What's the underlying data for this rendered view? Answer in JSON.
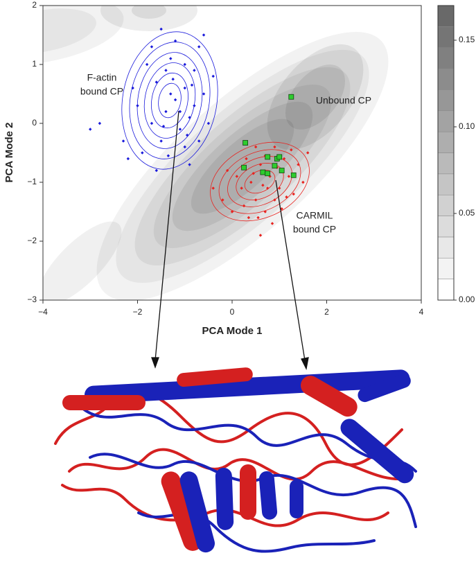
{
  "chart_data": {
    "type": "scatter",
    "x_label": "PCA Mode 1",
    "y_label": "PCA Mode 2",
    "xlim": [
      -4,
      4
    ],
    "ylim": [
      -3,
      2
    ],
    "xticks": [
      {
        "value": -4,
        "label": "−4"
      },
      {
        "value": -2,
        "label": "−2"
      },
      0,
      2,
      4
    ],
    "yticks": [
      {
        "value": -3,
        "label": "−3"
      },
      {
        "value": -2,
        "label": "−2"
      },
      {
        "value": -1,
        "label": "−1"
      },
      0,
      1,
      2
    ],
    "annotations": [
      [
        "F-actin",
        "bound CP"
      ],
      [
        "Unbound CP"
      ],
      [
        "CARMIL",
        "bound CP"
      ]
    ],
    "series": [
      {
        "color": "#1a1adb",
        "marker": "diamond",
        "x": [
          -1.2,
          -1.0,
          -1.4,
          -0.9,
          -1.6,
          -0.8,
          -1.3,
          -1.1,
          -1.7,
          -0.6,
          -1.5,
          -1.0,
          -2.0,
          -0.7,
          -1.2,
          -1.9,
          -0.5,
          -1.4,
          -0.9,
          -1.8,
          -2.3,
          -2.8,
          -3.0,
          -1.5,
          -0.6,
          -0.4,
          -1.1,
          -1.3,
          -0.8,
          -1.6,
          -2.2,
          -1.0,
          -1.25,
          -0.95,
          -1.45,
          -0.7,
          -2.1,
          -1.7,
          -0.85,
          -1.35
        ],
        "values": [
          0.4,
          0.6,
          0.2,
          0.1,
          0.7,
          0.9,
          1.1,
          -0.1,
          0.0,
          0.5,
          -0.3,
          -0.4,
          0.3,
          1.3,
          1.4,
          -0.5,
          0.0,
          0.9,
          -0.7,
          1.0,
          -0.3,
          0.0,
          -0.1,
          1.6,
          1.5,
          0.8,
          0.2,
          0.5,
          0.3,
          -0.8,
          -0.6,
          1.0,
          0.75,
          -0.2,
          -0.05,
          -0.3,
          0.6,
          1.3,
          0.65,
          -0.55
        ]
      },
      {
        "color": "#e8231f",
        "marker": "diamond",
        "x": [
          0.8,
          1.0,
          0.6,
          1.1,
          0.4,
          0.9,
          0.7,
          1.2,
          0.5,
          0.3,
          1.4,
          0.2,
          -0.2,
          0.0,
          0.6,
          1.3,
          0.9,
          0.5,
          1.5,
          0.1,
          0.75,
          0.95,
          0.65,
          1.05,
          0.35,
          -0.4,
          1.6,
          0.85,
          0.45,
          1.15,
          0.25,
          0.7,
          1.25,
          0.55,
          -0.1
        ],
        "values": [
          -0.9,
          -1.1,
          -0.7,
          -0.6,
          -1.0,
          -1.3,
          -1.5,
          -0.9,
          -1.3,
          -0.6,
          -0.7,
          -1.1,
          -1.3,
          -1.5,
          -1.9,
          -1.2,
          -0.4,
          -0.4,
          -1.0,
          -0.9,
          -1.1,
          -0.75,
          -1.05,
          -1.45,
          -1.6,
          -1.1,
          -0.5,
          -1.7,
          -0.85,
          -1.25,
          -1.4,
          -0.55,
          -0.45,
          -1.6,
          -0.8
        ]
      },
      {
        "color": "#2ecc2e",
        "marker": "square",
        "x": [
          1.25,
          0.28,
          0.25,
          0.75,
          0.95,
          1.0,
          0.9,
          0.65,
          0.75,
          1.05,
          1.3
        ],
        "values": [
          0.45,
          -0.33,
          -0.75,
          -0.57,
          -0.6,
          -0.57,
          -0.72,
          -0.83,
          -0.85,
          -0.8,
          -0.88
        ]
      }
    ],
    "colorbar": {
      "lim": [
        0,
        0.17
      ],
      "levels": 14,
      "ticks": [
        {
          "value": 0,
          "label": "0.00"
        },
        {
          "value": 0.05,
          "label": "0.05"
        },
        {
          "value": 0.1,
          "label": "0.10"
        },
        {
          "value": 0.15,
          "label": "0.15"
        }
      ]
    }
  }
}
